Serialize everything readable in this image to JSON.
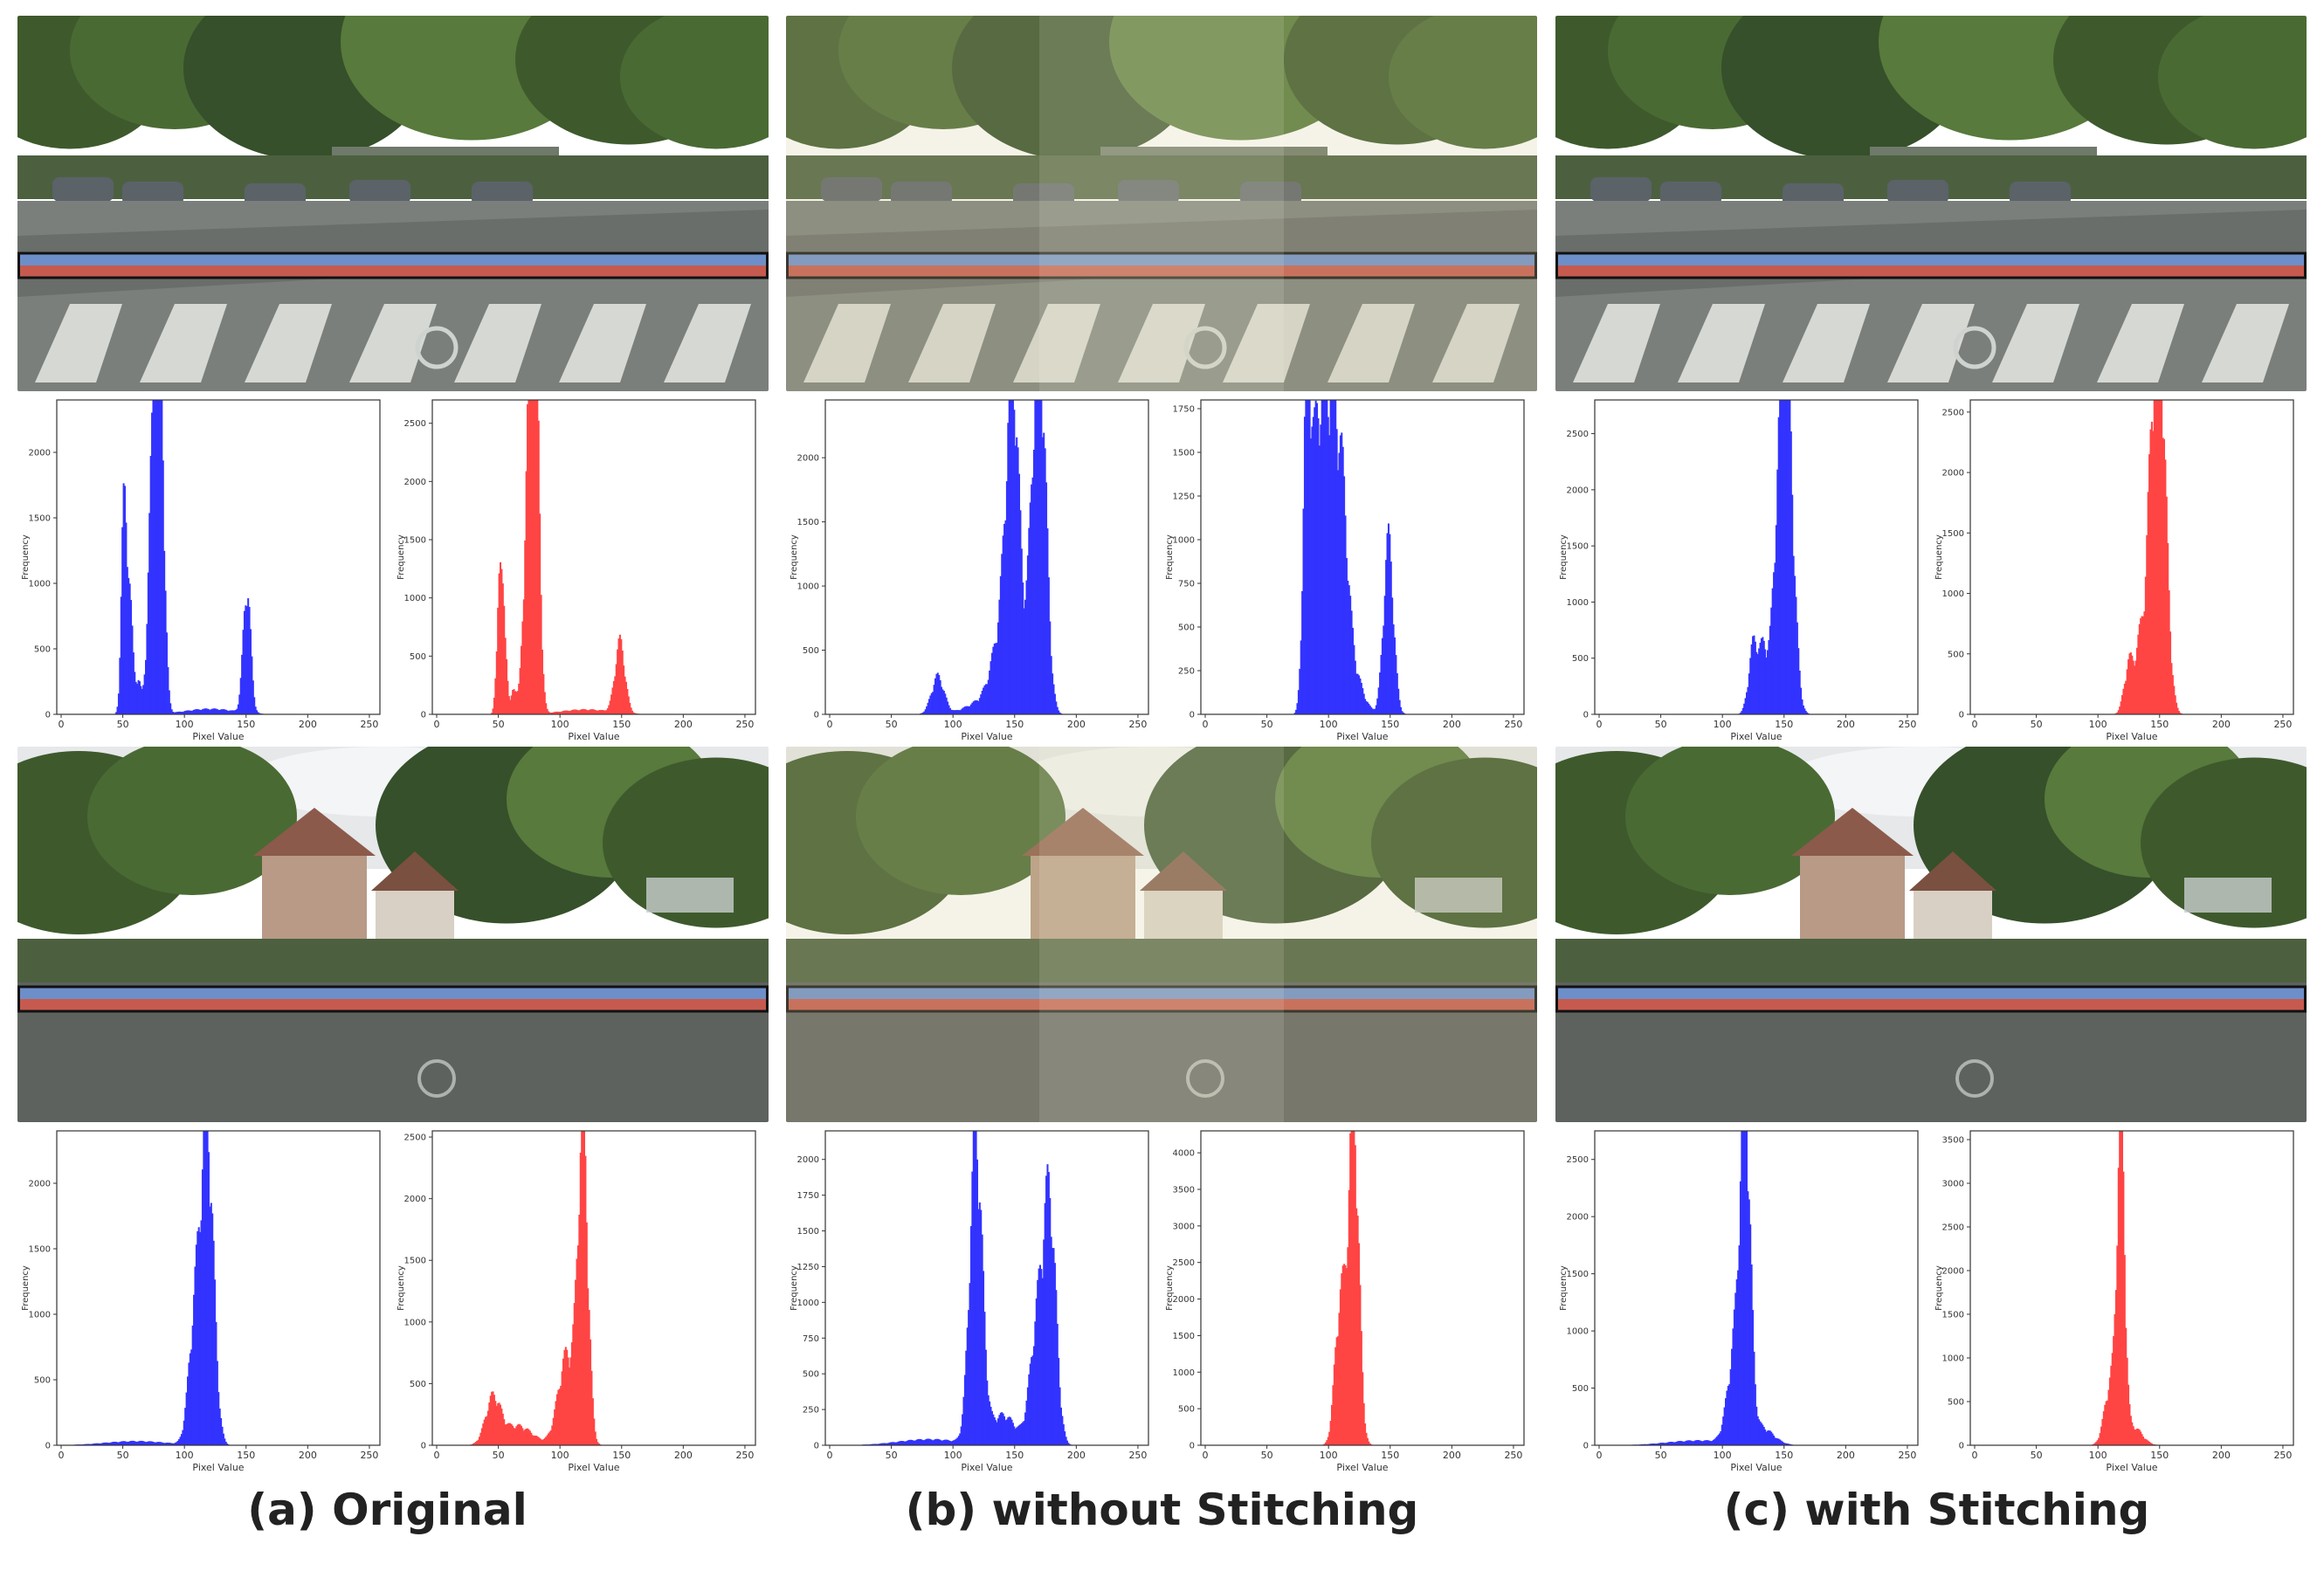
{
  "captions": {
    "a": "(a) Original",
    "b": "(b) without Stitching",
    "c": "(c) with Stitching"
  },
  "colors": {
    "blue_bars": "#3333ff",
    "red_bars": "#ff4444",
    "band_blue": "#6d8fc9",
    "band_red": "#c65a4e"
  },
  "chart_data": [
    {
      "id": "a1-blue",
      "type": "bar",
      "xlabel": "Pixel Value",
      "ylabel": "Frequency",
      "xlim": [
        0,
        255
      ],
      "ylim": [
        0,
        2400
      ],
      "xticks": [
        0,
        50,
        100,
        150,
        200,
        250
      ],
      "yticks": [
        0,
        500,
        1000,
        1500,
        2000
      ],
      "peaks": [
        [
          50,
          1150,
          2
        ],
        [
          54,
          950,
          3
        ],
        [
          62,
          220,
          2
        ],
        [
          75,
          2200,
          4
        ],
        [
          80,
          1900,
          3
        ],
        [
          120,
          40,
          20
        ],
        [
          150,
          920,
          3
        ]
      ],
      "series": [
        {
          "color": "blue"
        }
      ]
    },
    {
      "id": "a1-red",
      "type": "bar",
      "xlabel": "Pixel Value",
      "ylabel": "Frequency",
      "xlim": [
        0,
        255
      ],
      "ylim": [
        0,
        2700
      ],
      "xticks": [
        0,
        50,
        100,
        150,
        200,
        250
      ],
      "yticks": [
        0,
        500,
        1000,
        1500,
        2000,
        2500
      ],
      "peaks": [
        [
          50,
          1000,
          2
        ],
        [
          54,
          800,
          2
        ],
        [
          62,
          220,
          2
        ],
        [
          75,
          2500,
          4
        ],
        [
          80,
          2100,
          3
        ],
        [
          120,
          40,
          20
        ],
        [
          148,
          580,
          4
        ]
      ],
      "series": [
        {
          "color": "red"
        }
      ]
    },
    {
      "id": "b1-blue",
      "type": "bar",
      "xlabel": "Pixel Value",
      "ylabel": "Frequency",
      "xlim": [
        0,
        255
      ],
      "ylim": [
        0,
        2450
      ],
      "xticks": [
        0,
        50,
        100,
        150,
        200,
        250
      ],
      "yticks": [
        0,
        500,
        1000,
        1500,
        2000
      ],
      "peaks": [
        [
          87,
          280,
          5
        ],
        [
          148,
          2200,
          5
        ],
        [
          140,
          600,
          8
        ],
        [
          170,
          2250,
          5
        ],
        [
          165,
          900,
          6
        ],
        [
          125,
          100,
          14
        ]
      ],
      "series": [
        {
          "color": "blue"
        }
      ]
    },
    {
      "id": "b1-red",
      "type": "bar",
      "xlabel": "Pixel Value",
      "ylabel": "Frequency",
      "xlim": [
        0,
        255
      ],
      "ylim": [
        0,
        1800
      ],
      "xticks": [
        0,
        50,
        100,
        150,
        200,
        250
      ],
      "yticks": [
        0,
        250,
        500,
        750,
        1000,
        1250,
        1500,
        1750
      ],
      "peaks": [
        [
          82,
          1700,
          3
        ],
        [
          90,
          1200,
          5
        ],
        [
          100,
          1500,
          6
        ],
        [
          110,
          900,
          5
        ],
        [
          148,
          950,
          4
        ],
        [
          118,
          250,
          8
        ]
      ],
      "series": [
        {
          "color": "blue"
        }
      ]
    },
    {
      "id": "c1-blue",
      "type": "bar",
      "xlabel": "Pixel Value",
      "ylabel": "Frequency",
      "xlim": [
        0,
        255
      ],
      "ylim": [
        0,
        2800
      ],
      "xticks": [
        0,
        50,
        100,
        150,
        200,
        250
      ],
      "yticks": [
        0,
        500,
        1000,
        1500,
        2000,
        2500
      ],
      "peaks": [
        [
          125,
          620,
          4
        ],
        [
          133,
          450,
          3
        ],
        [
          152,
          2550,
          5
        ],
        [
          145,
          1400,
          5
        ]
      ],
      "series": [
        {
          "color": "blue"
        }
      ]
    },
    {
      "id": "c1-red",
      "type": "bar",
      "xlabel": "Pixel Value",
      "ylabel": "Frequency",
      "xlim": [
        0,
        255
      ],
      "ylim": [
        0,
        2600
      ],
      "xticks": [
        0,
        50,
        100,
        150,
        200,
        250
      ],
      "yticks": [
        0,
        500,
        1000,
        1500,
        2000,
        2500
      ],
      "peaks": [
        [
          125,
          430,
          4
        ],
        [
          133,
          380,
          3
        ],
        [
          150,
          2450,
          5
        ],
        [
          143,
          1500,
          5
        ]
      ],
      "series": [
        {
          "color": "red"
        }
      ]
    },
    {
      "id": "a2-blue",
      "type": "bar",
      "xlabel": "Pixel Value",
      "ylabel": "Frequency",
      "xlim": [
        0,
        255
      ],
      "ylim": [
        0,
        2400
      ],
      "xticks": [
        0,
        50,
        100,
        150,
        200,
        250
      ],
      "yticks": [
        0,
        500,
        1000,
        1500,
        2000
      ],
      "peaks": [
        [
          118,
          2250,
          5
        ],
        [
          108,
          900,
          5
        ],
        [
          60,
          30,
          25
        ]
      ],
      "series": [
        {
          "color": "blue"
        }
      ]
    },
    {
      "id": "a2-red",
      "type": "bar",
      "xlabel": "Pixel Value",
      "ylabel": "Frequency",
      "xlim": [
        0,
        255
      ],
      "ylim": [
        0,
        2550
      ],
      "xticks": [
        0,
        50,
        100,
        150,
        200,
        250
      ],
      "yticks": [
        0,
        500,
        1000,
        1500,
        2000,
        2500
      ],
      "peaks": [
        [
          118,
          2400,
          4
        ],
        [
          105,
          700,
          7
        ],
        [
          45,
          350,
          6
        ],
        [
          65,
          150,
          12
        ]
      ],
      "series": [
        {
          "color": "red"
        }
      ]
    },
    {
      "id": "b2-blue",
      "type": "bar",
      "xlabel": "Pixel Value",
      "ylabel": "Frequency",
      "xlim": [
        0,
        255
      ],
      "ylim": [
        0,
        2200
      ],
      "xticks": [
        0,
        50,
        100,
        150,
        200,
        250
      ],
      "yticks": [
        0,
        250,
        500,
        750,
        1000,
        1250,
        1500,
        1750,
        2000
      ],
      "peaks": [
        [
          118,
          2050,
          5
        ],
        [
          178,
          1500,
          5
        ],
        [
          168,
          800,
          6
        ],
        [
          140,
          200,
          10
        ],
        [
          80,
          40,
          25
        ]
      ],
      "series": [
        {
          "color": "blue"
        }
      ]
    },
    {
      "id": "b2-red",
      "type": "bar",
      "xlabel": "Pixel Value",
      "ylabel": "Frequency",
      "xlim": [
        0,
        255
      ],
      "ylim": [
        0,
        4300
      ],
      "xticks": [
        0,
        50,
        100,
        150,
        200,
        250
      ],
      "yticks": [
        0,
        500,
        1000,
        1500,
        2000,
        2500,
        3000,
        3500,
        4000
      ],
      "peaks": [
        [
          120,
          4100,
          4
        ],
        [
          108,
          1300,
          4
        ],
        [
          113,
          900,
          5
        ]
      ],
      "series": [
        {
          "color": "red"
        }
      ]
    },
    {
      "id": "c2-blue",
      "type": "bar",
      "xlabel": "Pixel Value",
      "ylabel": "Frequency",
      "xlim": [
        0,
        255
      ],
      "ylim": [
        0,
        2750
      ],
      "xticks": [
        0,
        50,
        100,
        150,
        200,
        250
      ],
      "yticks": [
        0,
        500,
        1000,
        1500,
        2000,
        2500
      ],
      "peaks": [
        [
          118,
          2600,
          4
        ],
        [
          110,
          800,
          6
        ],
        [
          130,
          150,
          10
        ],
        [
          80,
          40,
          25
        ]
      ],
      "series": [
        {
          "color": "blue"
        }
      ]
    },
    {
      "id": "c2-red",
      "type": "bar",
      "xlabel": "Pixel Value",
      "ylabel": "Frequency",
      "xlim": [
        0,
        255
      ],
      "ylim": [
        0,
        3600
      ],
      "xticks": [
        0,
        50,
        100,
        150,
        200,
        250
      ],
      "yticks": [
        0,
        500,
        1000,
        1500,
        2000,
        2500,
        3000,
        3500
      ],
      "peaks": [
        [
          118,
          3400,
          3
        ],
        [
          110,
          700,
          5
        ],
        [
          128,
          200,
          7
        ]
      ],
      "series": [
        {
          "color": "red"
        }
      ]
    }
  ]
}
